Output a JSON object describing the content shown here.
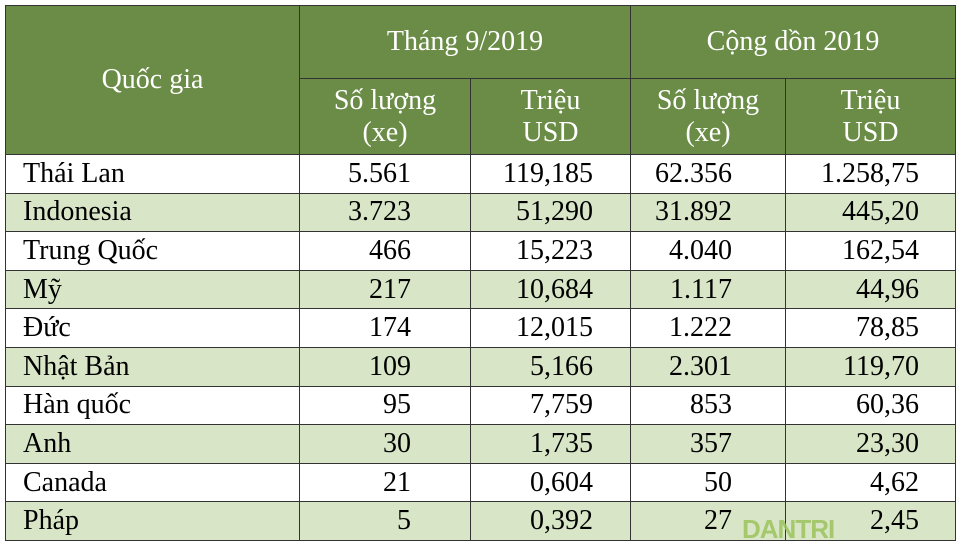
{
  "header": {
    "country": "Quốc gia",
    "group1": "Tháng 9/2019",
    "group2": "Cộng dồn 2019",
    "qty_line1": "Số lượng",
    "qty_line2": "(xe)",
    "val_line1": "Triệu",
    "val_line2": "USD"
  },
  "rows": [
    {
      "country": "Thái Lan",
      "month_qty": "5.561",
      "month_val": "119,185",
      "ytd_qty": "62.356",
      "ytd_val": "1.258,75"
    },
    {
      "country": "Indonesia",
      "month_qty": "3.723",
      "month_val": "51,290",
      "ytd_qty": "31.892",
      "ytd_val": "445,20"
    },
    {
      "country": "Trung Quốc",
      "month_qty": "466",
      "month_val": "15,223",
      "ytd_qty": "4.040",
      "ytd_val": "162,54"
    },
    {
      "country": "Mỹ",
      "month_qty": "217",
      "month_val": "10,684",
      "ytd_qty": "1.117",
      "ytd_val": "44,96"
    },
    {
      "country": "Đức",
      "month_qty": "174",
      "month_val": "12,015",
      "ytd_qty": "1.222",
      "ytd_val": "78,85"
    },
    {
      "country": "Nhật Bản",
      "month_qty": "109",
      "month_val": "5,166",
      "ytd_qty": "2.301",
      "ytd_val": "119,70"
    },
    {
      "country": "Hàn quốc",
      "month_qty": "95",
      "month_val": "7,759",
      "ytd_qty": "853",
      "ytd_val": "60,36"
    },
    {
      "country": "Anh",
      "month_qty": "30",
      "month_val": "1,735",
      "ytd_qty": "357",
      "ytd_val": "23,30"
    },
    {
      "country": "Canada",
      "month_qty": "21",
      "month_val": "0,604",
      "ytd_qty": "50",
      "ytd_val": "4,62"
    },
    {
      "country": "Pháp",
      "month_qty": "5",
      "month_val": "0,392",
      "ytd_qty": "27",
      "ytd_val": "2,45"
    }
  ],
  "watermark": "DANTRI",
  "colors": {
    "header_bg": "#6a8c46",
    "header_text": "#ffffff",
    "stripe": "#d8e6c7",
    "watermark": "#9cc35b"
  }
}
